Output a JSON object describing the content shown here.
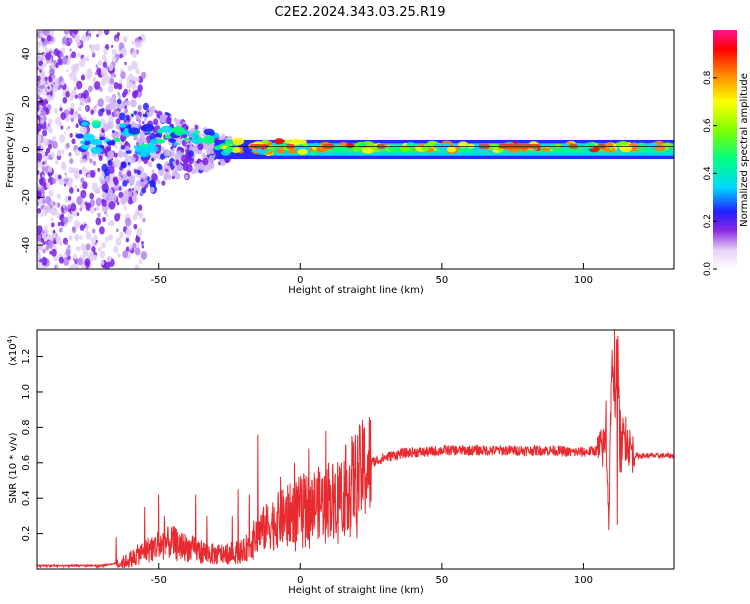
{
  "title": "C2E2.2024.343.03.25.R19",
  "chart_data": [
    {
      "type": "heatmap",
      "xlabel": "Height of straight line (km)",
      "ylabel": "Frequency (Hz)",
      "xlim": [
        -93,
        132
      ],
      "ylim": [
        -50,
        50
      ],
      "x_ticks": [
        -50,
        0,
        50,
        100
      ],
      "y_ticks": [
        -40,
        -20,
        0,
        20,
        40
      ],
      "colorbar": {
        "label": "Normalized spectral amplitude",
        "range": [
          0,
          1
        ],
        "ticks": [
          0.0,
          0.2,
          0.4,
          0.6,
          0.8
        ]
      },
      "grid": false
    },
    {
      "type": "line",
      "xlabel": "Height of straight line (km)",
      "ylabel": "SNR (10 * v/v)",
      "y_multiplier_label": "(x10",
      "y_multiplier_exp": "4",
      "y_multiplier_close": ")",
      "xlim": [
        -93,
        132
      ],
      "ylim": [
        0,
        1.35
      ],
      "x_ticks": [
        -50,
        0,
        50,
        100
      ],
      "y_ticks": [
        0.2,
        0.4,
        0.6,
        0.8,
        1.0,
        1.2
      ],
      "line_color": "#e8292e",
      "envelope": {
        "x": [
          -93,
          -70,
          -62,
          -55,
          -50,
          -45,
          -40,
          -35,
          -30,
          -25,
          -20,
          -15,
          -10,
          -5,
          0,
          5,
          10,
          15,
          20,
          25,
          30,
          35,
          40,
          45,
          50,
          60,
          70,
          80,
          90,
          95,
          100,
          105,
          107,
          108,
          109,
          110,
          111,
          112,
          113,
          114,
          116,
          118,
          120,
          132
        ],
        "y": [
          0.02,
          0.02,
          0.04,
          0.1,
          0.14,
          0.15,
          0.12,
          0.1,
          0.08,
          0.09,
          0.1,
          0.2,
          0.26,
          0.3,
          0.34,
          0.37,
          0.38,
          0.44,
          0.52,
          0.6,
          0.63,
          0.65,
          0.66,
          0.66,
          0.67,
          0.67,
          0.67,
          0.67,
          0.67,
          0.66,
          0.66,
          0.67,
          0.68,
          0.75,
          0.3,
          1.2,
          0.85,
          1.35,
          0.6,
          0.75,
          0.7,
          0.64,
          0.64,
          0.64
        ]
      },
      "spikes": [
        {
          "x": -65,
          "y": 0.18
        },
        {
          "x": -55,
          "y": 0.35
        },
        {
          "x": -50,
          "y": 0.42
        },
        {
          "x": -48,
          "y": 0.3
        },
        {
          "x": -37,
          "y": 0.42
        },
        {
          "x": -33,
          "y": 0.3
        },
        {
          "x": -24,
          "y": 0.3
        },
        {
          "x": -22,
          "y": 0.45
        },
        {
          "x": -18,
          "y": 0.42
        },
        {
          "x": -15,
          "y": 0.76
        },
        {
          "x": -7,
          "y": 0.52
        },
        {
          "x": -2,
          "y": 0.6
        },
        {
          "x": 3,
          "y": 0.68
        },
        {
          "x": 9,
          "y": 0.78
        },
        {
          "x": 10,
          "y": 0.6
        },
        {
          "x": 12,
          "y": 0.48
        },
        {
          "x": 108,
          "y": 0.95
        },
        {
          "x": 109,
          "y": 0.22
        },
        {
          "x": 111,
          "y": 1.35
        },
        {
          "x": 112,
          "y": 0.25
        },
        {
          "x": 113,
          "y": 0.9
        },
        {
          "x": 115,
          "y": 0.86
        }
      ]
    }
  ]
}
